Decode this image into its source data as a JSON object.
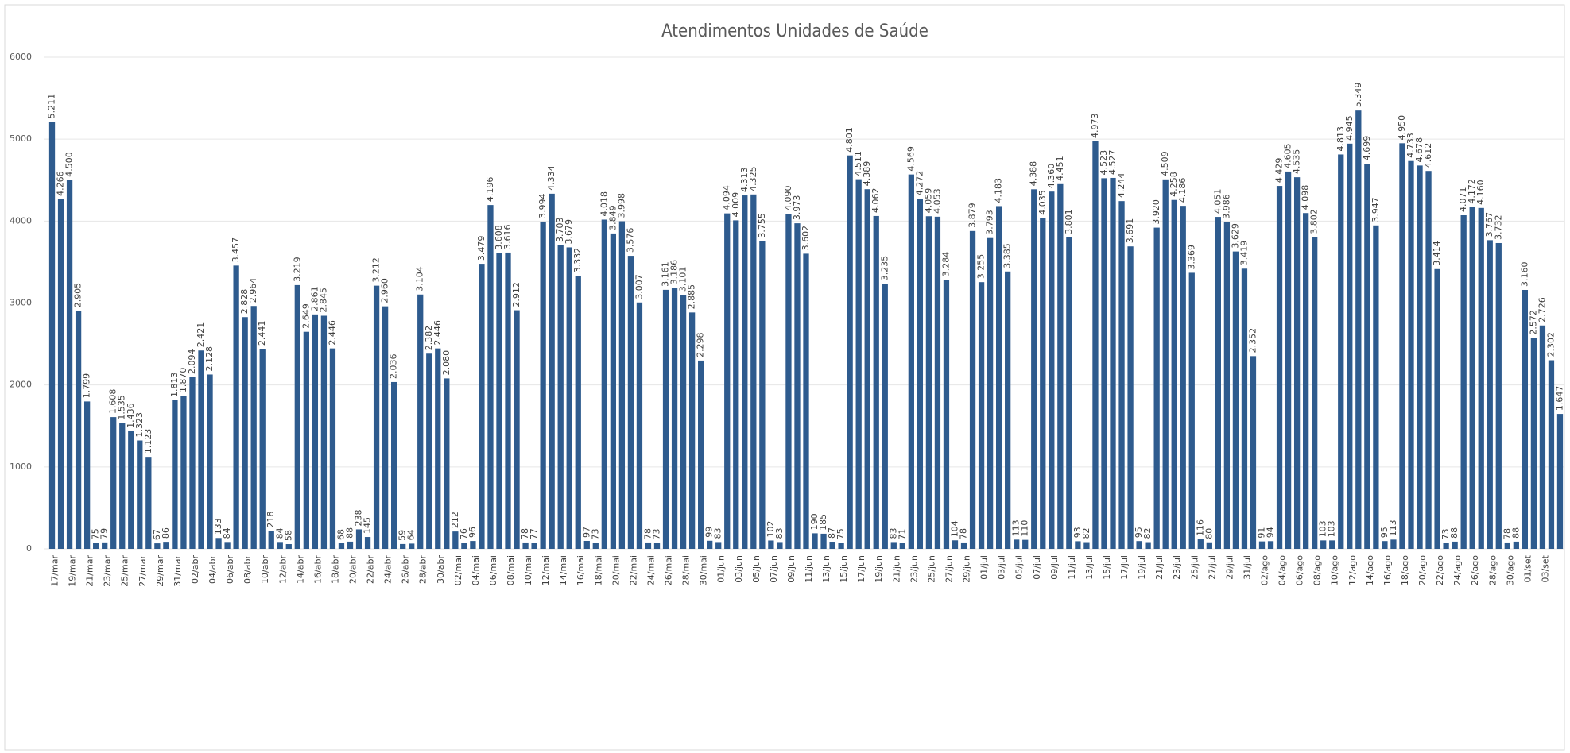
{
  "chart_data": {
    "type": "bar",
    "title": "Atendimentos Unidades de Saúde",
    "categories": [
      "17/mar",
      null,
      "19/mar",
      null,
      "21/mar",
      null,
      "23/mar",
      null,
      "25/mar",
      null,
      "27/mar",
      null,
      "29/mar",
      null,
      "31/mar",
      null,
      "02/abr",
      null,
      "04/abr",
      null,
      "06/abr",
      null,
      "08/abr",
      null,
      "10/abr",
      null,
      "12/abr",
      null,
      "14/abr",
      null,
      "16/abr",
      null,
      "18/abr",
      null,
      "20/abr",
      null,
      "22/abr",
      null,
      "24/abr",
      null,
      "26/abr",
      null,
      "28/abr",
      null,
      "30/abr",
      null,
      "02/mai",
      null,
      "04/mai",
      null,
      "06/mai",
      null,
      "08/mai",
      null,
      "10/mai",
      null,
      "12/mai",
      null,
      "14/mai",
      null,
      "16/mai",
      null,
      "18/mai",
      null,
      "20/mai",
      null,
      "22/mai",
      null,
      "24/mai",
      null,
      "26/mai",
      null,
      "28/mai",
      null,
      "30/mai",
      null,
      "01/jun",
      null,
      "03/jun",
      null,
      "05/jun",
      null,
      "07/jun",
      null,
      "09/jun",
      null,
      "11/jun",
      null,
      "13/jun",
      null,
      "15/jun",
      null,
      "17/jun",
      null,
      "19/jun",
      null,
      "21/jun",
      null,
      "23/jun",
      null,
      "25/jun",
      null,
      "27/jun",
      null,
      "29/jun",
      null,
      "01/jul",
      null,
      "03/jul",
      null,
      "05/jul",
      null,
      "07/jul",
      null,
      "09/jul",
      null,
      "11/jul",
      null,
      "13/jul",
      null,
      "15/jul",
      null,
      "17/jul",
      null,
      "19/jul",
      null,
      "21/jul",
      null,
      "23/jul",
      null,
      "25/jul",
      null,
      "27/jul",
      null,
      "29/jul",
      null,
      "31/jul",
      null,
      "02/ago",
      null,
      "04/ago",
      null,
      "06/ago",
      null,
      "08/ago",
      null,
      "10/ago",
      null,
      "12/ago",
      null,
      "14/ago",
      null,
      "16/ago",
      null,
      "18/ago",
      null,
      "20/ago",
      null,
      "22/ago",
      null,
      "24/ago",
      null,
      "26/ago",
      null,
      "28/ago",
      null,
      "30/ago",
      null,
      "01/set",
      null,
      "03/set",
      null,
      null
    ],
    "values": [
      5211,
      4266,
      4500,
      2905,
      1799,
      75,
      79,
      1608,
      1535,
      1436,
      1323,
      1123,
      67,
      86,
      1813,
      1870,
      2094,
      2421,
      2128,
      133,
      84,
      3457,
      2828,
      2964,
      2441,
      218,
      84,
      58,
      3219,
      2649,
      2861,
      2845,
      2446,
      68,
      88,
      238,
      145,
      3212,
      2960,
      2036,
      59,
      64,
      3104,
      2382,
      2446,
      2080,
      212,
      76,
      96,
      3479,
      4196,
      3608,
      3616,
      2912,
      78,
      77,
      3994,
      4334,
      3703,
      3679,
      3332,
      97,
      73,
      4018,
      3849,
      3998,
      3576,
      3007,
      78,
      73,
      3161,
      3186,
      3101,
      2885,
      2298,
      99,
      83,
      4094,
      4009,
      4313,
      4325,
      3755,
      102,
      83,
      4090,
      3973,
      3602,
      190,
      185,
      87,
      75,
      4801,
      4511,
      4389,
      4062,
      3235,
      83,
      71,
      4569,
      4272,
      4059,
      4053,
      3284,
      104,
      78,
      3879,
      3255,
      3793,
      4183,
      3385,
      113,
      110,
      4388,
      4035,
      4360,
      4451,
      3801,
      93,
      82,
      4973,
      4523,
      4527,
      4244,
      3691,
      95,
      82,
      3920,
      4509,
      4258,
      4186,
      3369,
      116,
      80,
      4051,
      3986,
      3629,
      3419,
      2352,
      91,
      94,
      4429,
      4605,
      4535,
      4098,
      3802,
      103,
      103,
      4813,
      4945,
      5349,
      4699,
      3947,
      95,
      113,
      4950,
      4733,
      4678,
      4612,
      3414,
      73,
      88,
      4071,
      4172,
      4160,
      3767,
      3732,
      78,
      88,
      3160,
      2572,
      2726,
      2302,
      1647
    ],
    "value_labels": [
      "5.211",
      "4.266",
      "4.500",
      "2.905",
      "1.799",
      "75",
      "79",
      "1.608",
      "1.535",
      "1.436",
      "1.323",
      "1.123",
      "67",
      "86",
      "1.813",
      "1.870",
      "2.094",
      "2.421",
      "2.128",
      "133",
      "84",
      "3.457",
      "2.828",
      "2.964",
      "2.441",
      "218",
      "84",
      "58",
      "3.219",
      "2.649",
      "2.861",
      "2.845",
      "2.446",
      "68",
      "88",
      "238",
      "145",
      "3.212",
      "2.960",
      "2.036",
      "59",
      "64",
      "3.104",
      "2.382",
      "2.446",
      "2.080",
      "212",
      "76",
      "96",
      "3.479",
      "4.196",
      "3.608",
      "3.616",
      "2.912",
      "78",
      "77",
      "3.994",
      "4.334",
      "3.703",
      "3.679",
      "3.332",
      "97",
      "73",
      "4.018",
      "3.849",
      "3.998",
      "3.576",
      "3.007",
      "78",
      "73",
      "3.161",
      "3.186",
      "3.101",
      "2.885",
      "2.298",
      "99",
      "83",
      "4.094",
      "4.009",
      "4.313",
      "4.325",
      "3.755",
      "102",
      "83",
      "4.090",
      "3.973",
      "3.602",
      "190",
      "185",
      "87",
      "75",
      "4.801",
      "4.511",
      "4.389",
      "4.062",
      "3.235",
      "83",
      "71",
      "4.569",
      "4.272",
      "4.059",
      "4.053",
      "3.284",
      "104",
      "78",
      "3.879",
      "3.255",
      "3.793",
      "4.183",
      "3.385",
      "113",
      "110",
      "4.388",
      "4.035",
      "4.360",
      "4.451",
      "3.801",
      "93",
      "82",
      "4.973",
      "4.523",
      "4.527",
      "4.244",
      "3.691",
      "95",
      "82",
      "3.920",
      "4.509",
      "4.258",
      "4.186",
      "3.369",
      "116",
      "80",
      "4.051",
      "3.986",
      "3.629",
      "3.419",
      "2.352",
      "91",
      "94",
      "4.429",
      "4.605",
      "4.535",
      "4.098",
      "3.802",
      "103",
      "103",
      "4.813",
      "4.945",
      "5.349",
      "4.699",
      "3.947",
      "95",
      "113",
      "4.950",
      "4.733",
      "4.678",
      "4.612",
      "3.414",
      "73",
      "88",
      "4.071",
      "4.172",
      "4.160",
      "3.767",
      "3.732",
      "78",
      "88",
      "3.160",
      "2.572",
      "2.726",
      "2.302",
      "1.647"
    ],
    "color": "#2e5b8e",
    "ylim": [
      0,
      6000
    ],
    "yticks": [
      0,
      1000,
      2000,
      3000,
      4000,
      5000,
      6000
    ],
    "grid": true
  }
}
